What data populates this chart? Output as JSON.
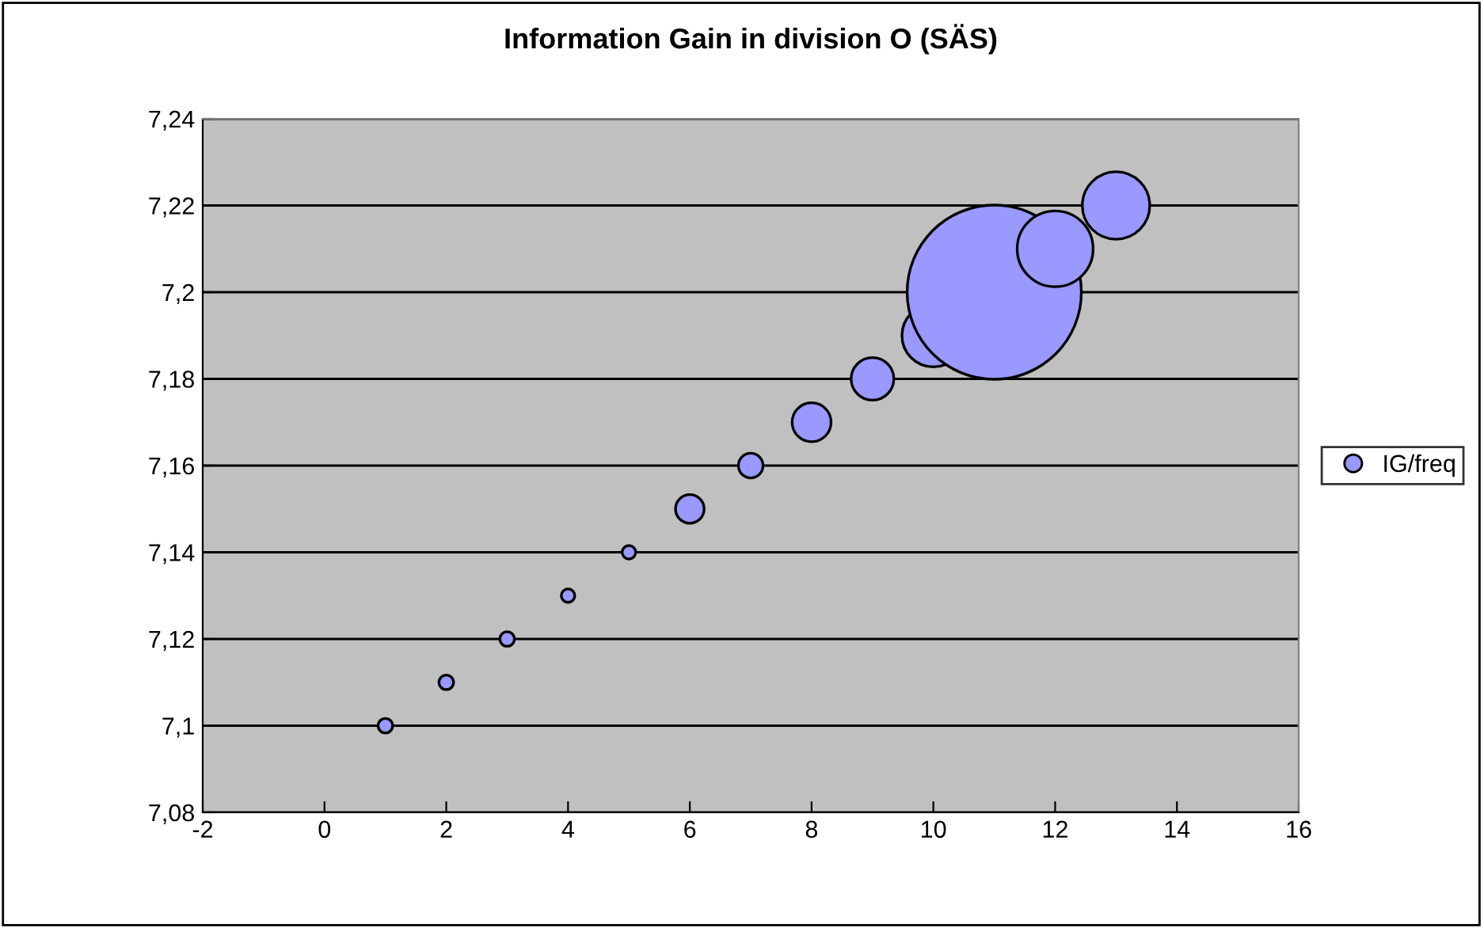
{
  "chart_data": {
    "type": "bubble",
    "title": "Information Gain in division O (SÄS)",
    "x": [
      1,
      2,
      3,
      4,
      5,
      6,
      7,
      8,
      9,
      10,
      11,
      12,
      13
    ],
    "series": [
      {
        "name": "IG/freq",
        "color": "#9999ff",
        "values": [
          7.1,
          7.11,
          7.12,
          7.13,
          7.14,
          7.15,
          7.16,
          7.17,
          7.18,
          7.19,
          7.2,
          7.21,
          7.22
        ],
        "sizes": [
          0.007,
          0.007,
          0.007,
          0.006,
          0.006,
          0.027,
          0.02,
          0.05,
          0.06,
          0.13,
          1,
          0.19,
          0.15
        ]
      }
    ],
    "xlim": [
      -2,
      16
    ],
    "xticks": [
      -2,
      0,
      2,
      4,
      6,
      8,
      10,
      12,
      14,
      16
    ],
    "ylim": [
      7.08,
      7.24
    ],
    "yticks": [
      {
        "value": 7.08,
        "label": "7,08"
      },
      {
        "value": 7.1,
        "label": "7,1"
      },
      {
        "value": 7.12,
        "label": "7,12"
      },
      {
        "value": 7.14,
        "label": "7,14"
      },
      {
        "value": 7.16,
        "label": "7,16"
      },
      {
        "value": 7.18,
        "label": "7,18"
      },
      {
        "value": 7.2,
        "label": "7,2"
      },
      {
        "value": 7.22,
        "label": "7,22"
      },
      {
        "value": 7.24,
        "label": "7,24"
      }
    ],
    "grid": "y",
    "legend": "right",
    "marker": "circle"
  }
}
